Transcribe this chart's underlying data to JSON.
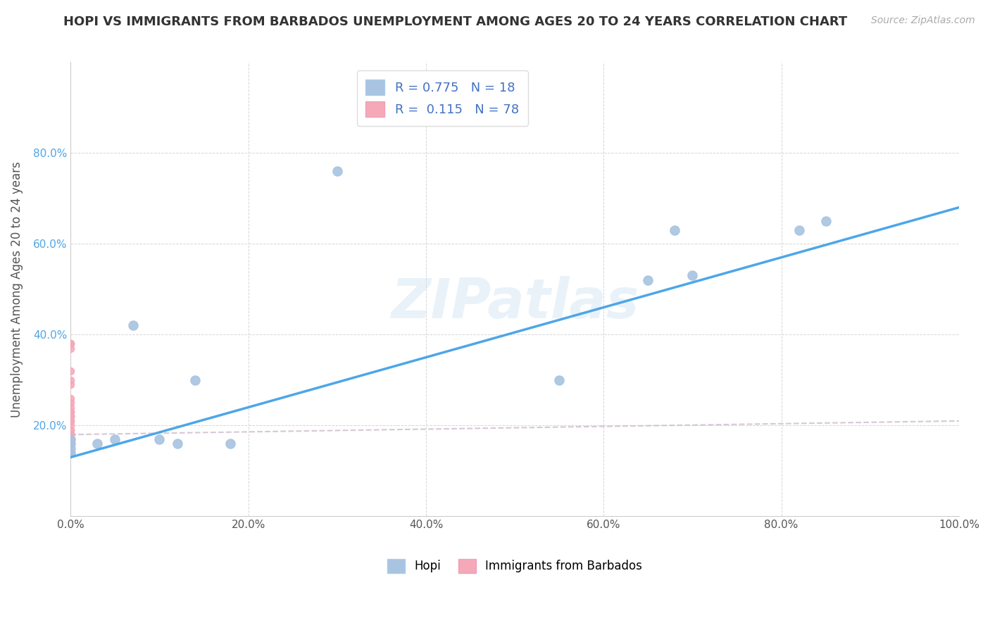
{
  "title": "HOPI VS IMMIGRANTS FROM BARBADOS UNEMPLOYMENT AMONG AGES 20 TO 24 YEARS CORRELATION CHART",
  "source": "Source: ZipAtlas.com",
  "ylabel": "Unemployment Among Ages 20 to 24 years",
  "xlim": [
    0,
    1.0
  ],
  "ylim": [
    0,
    1.0
  ],
  "xticks": [
    0.0,
    0.2,
    0.4,
    0.6,
    0.8,
    1.0
  ],
  "yticks": [
    0.0,
    0.2,
    0.4,
    0.6,
    0.8
  ],
  "xticklabels": [
    "0.0%",
    "20.0%",
    "40.0%",
    "60.0%",
    "80.0%",
    "100.0%"
  ],
  "yticklabels": [
    "",
    "20.0%",
    "40.0%",
    "60.0%",
    "80.0%"
  ],
  "hopi_color": "#a8c4e0",
  "barbados_color": "#f4a8b8",
  "trendline_hopi_color": "#4da6e8",
  "trendline_barbados_color": "#ccbbcc",
  "R_hopi": 0.775,
  "N_hopi": 18,
  "R_barbados": 0.115,
  "N_barbados": 78,
  "legend_label_hopi": "Hopi",
  "legend_label_barbados": "Immigrants from Barbados",
  "watermark": "ZIPatlas",
  "hopi_x": [
    0.0,
    0.0,
    0.0,
    0.0,
    0.03,
    0.05,
    0.07,
    0.1,
    0.12,
    0.14,
    0.18,
    0.3,
    0.55,
    0.65,
    0.68,
    0.7,
    0.82,
    0.85
  ],
  "hopi_y": [
    0.14,
    0.15,
    0.16,
    0.17,
    0.16,
    0.17,
    0.42,
    0.17,
    0.16,
    0.3,
    0.16,
    0.76,
    0.3,
    0.52,
    0.63,
    0.53,
    0.63,
    0.65
  ],
  "barbados_x": [
    0.0,
    0.0,
    0.0,
    0.0,
    0.0,
    0.0,
    0.0,
    0.0,
    0.0,
    0.0,
    0.0,
    0.0,
    0.0,
    0.0,
    0.0,
    0.0,
    0.0,
    0.0,
    0.0,
    0.0,
    0.0,
    0.0,
    0.0,
    0.0,
    0.0,
    0.0,
    0.0,
    0.0,
    0.0,
    0.0,
    0.0,
    0.0,
    0.0,
    0.0,
    0.0,
    0.0,
    0.0,
    0.0,
    0.0,
    0.0,
    0.0,
    0.0,
    0.0,
    0.0,
    0.0,
    0.0,
    0.0,
    0.0,
    0.0,
    0.0,
    0.0,
    0.0,
    0.0,
    0.0,
    0.0,
    0.0,
    0.0,
    0.0,
    0.0,
    0.0,
    0.0,
    0.0,
    0.0,
    0.0,
    0.0,
    0.0,
    0.0,
    0.0,
    0.0,
    0.0,
    0.0,
    0.0,
    0.0,
    0.0,
    0.0,
    0.0,
    0.0,
    0.0
  ],
  "barbados_y": [
    0.14,
    0.14,
    0.14,
    0.14,
    0.14,
    0.14,
    0.14,
    0.14,
    0.14,
    0.14,
    0.14,
    0.14,
    0.14,
    0.14,
    0.14,
    0.14,
    0.14,
    0.14,
    0.14,
    0.14,
    0.14,
    0.14,
    0.14,
    0.14,
    0.14,
    0.14,
    0.14,
    0.14,
    0.14,
    0.16,
    0.16,
    0.16,
    0.16,
    0.16,
    0.16,
    0.16,
    0.16,
    0.16,
    0.17,
    0.17,
    0.17,
    0.17,
    0.17,
    0.17,
    0.17,
    0.17,
    0.17,
    0.17,
    0.17,
    0.17,
    0.17,
    0.18,
    0.18,
    0.18,
    0.18,
    0.18,
    0.18,
    0.18,
    0.18,
    0.19,
    0.19,
    0.2,
    0.21,
    0.21,
    0.22,
    0.22,
    0.22,
    0.23,
    0.23,
    0.24,
    0.25,
    0.26,
    0.29,
    0.3,
    0.32,
    0.37,
    0.38,
    0.38
  ],
  "hopi_trendline_x": [
    0.0,
    1.0
  ],
  "hopi_trendline_y": [
    0.13,
    0.68
  ],
  "barbados_trendline_x": [
    0.0,
    1.0
  ],
  "barbados_trendline_y": [
    0.18,
    0.21
  ]
}
